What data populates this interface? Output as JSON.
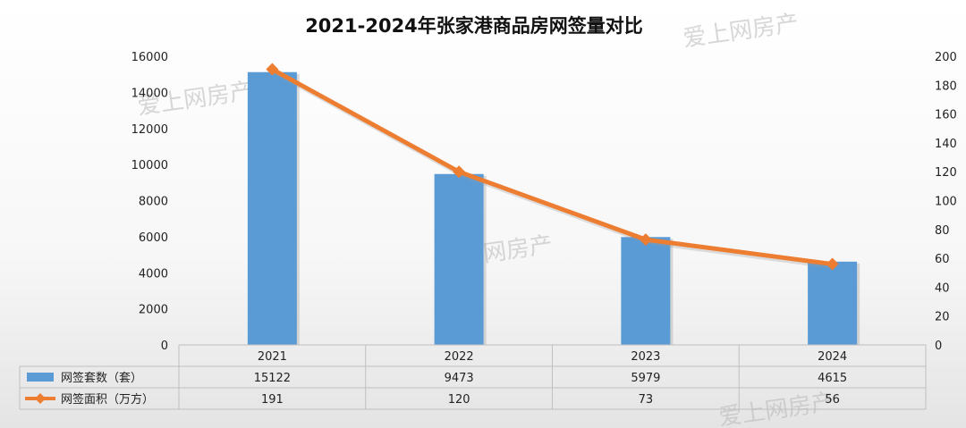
{
  "chart_data": {
    "type": "bar",
    "title": "2021-2024年张家港商品房网签量对比",
    "categories": [
      "2021",
      "2022",
      "2023",
      "2024"
    ],
    "series": [
      {
        "name": "网签套数（套）",
        "type": "bar",
        "axis": "left",
        "color": "#5B9BD5",
        "values": [
          15122,
          9473,
          5979,
          4615
        ]
      },
      {
        "name": "网签面积（万方）",
        "type": "line",
        "axis": "right",
        "color": "#ED7D31",
        "values": [
          191,
          120,
          73,
          56
        ]
      }
    ],
    "y_left": {
      "ylim": [
        0,
        16000
      ],
      "ticks": [
        0,
        2000,
        4000,
        6000,
        8000,
        10000,
        12000,
        14000,
        16000
      ]
    },
    "y_right": {
      "ylim": [
        0,
        200
      ],
      "ticks": [
        0,
        20,
        40,
        60,
        80,
        100,
        120,
        140,
        160,
        180,
        200
      ]
    },
    "grid": false,
    "legend": "data-table"
  },
  "watermark": "爱上网房产"
}
